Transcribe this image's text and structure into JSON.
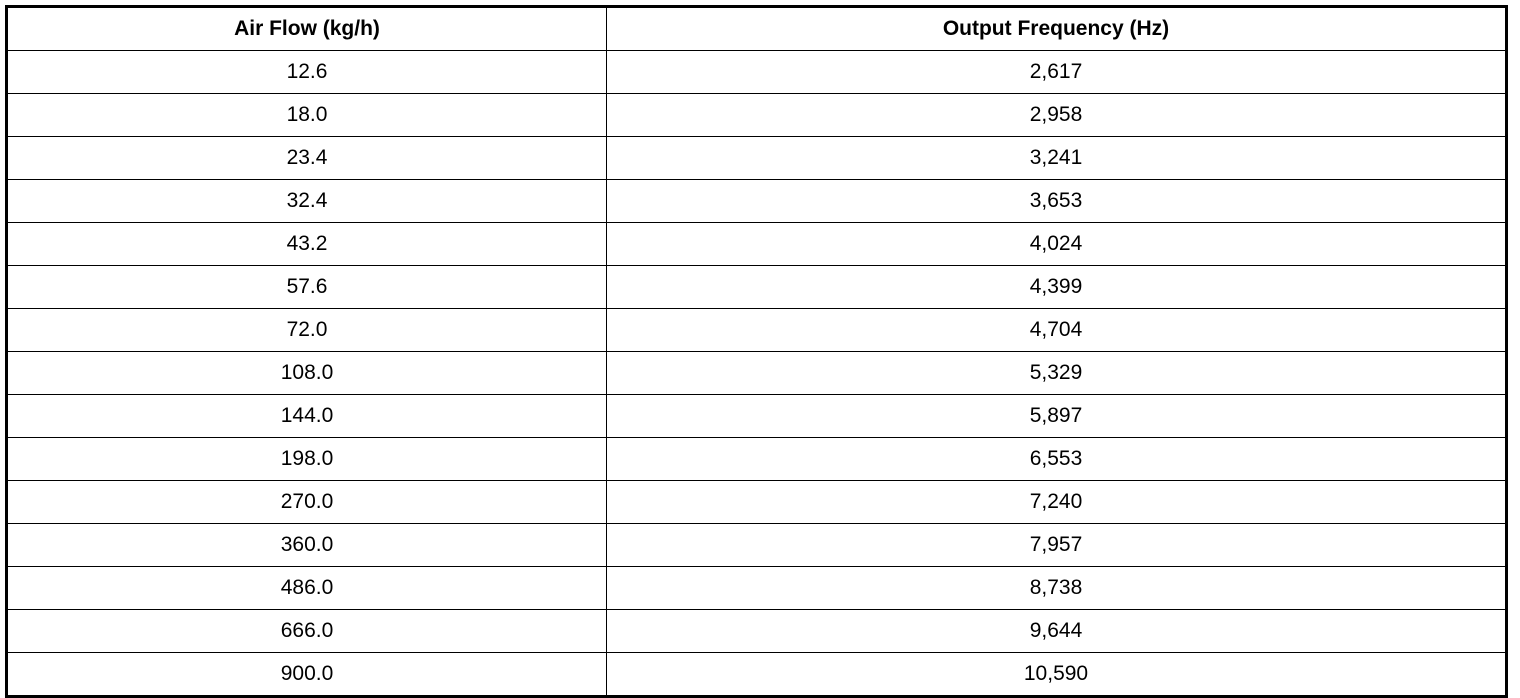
{
  "table": {
    "headers": [
      "Air Flow (kg/h)",
      "Output Frequency (Hz)"
    ],
    "rows": [
      [
        "12.6",
        "2,617"
      ],
      [
        "18.0",
        "2,958"
      ],
      [
        "23.4",
        "3,241"
      ],
      [
        "32.4",
        "3,653"
      ],
      [
        "43.2",
        "4,024"
      ],
      [
        "57.6",
        "4,399"
      ],
      [
        "72.0",
        "4,704"
      ],
      [
        "108.0",
        "5,329"
      ],
      [
        "144.0",
        "5,897"
      ],
      [
        "198.0",
        "6,553"
      ],
      [
        "270.0",
        "7,240"
      ],
      [
        "360.0",
        "7,957"
      ],
      [
        "486.0",
        "8,738"
      ],
      [
        "666.0",
        "9,644"
      ],
      [
        "900.0",
        "10,590"
      ]
    ]
  }
}
